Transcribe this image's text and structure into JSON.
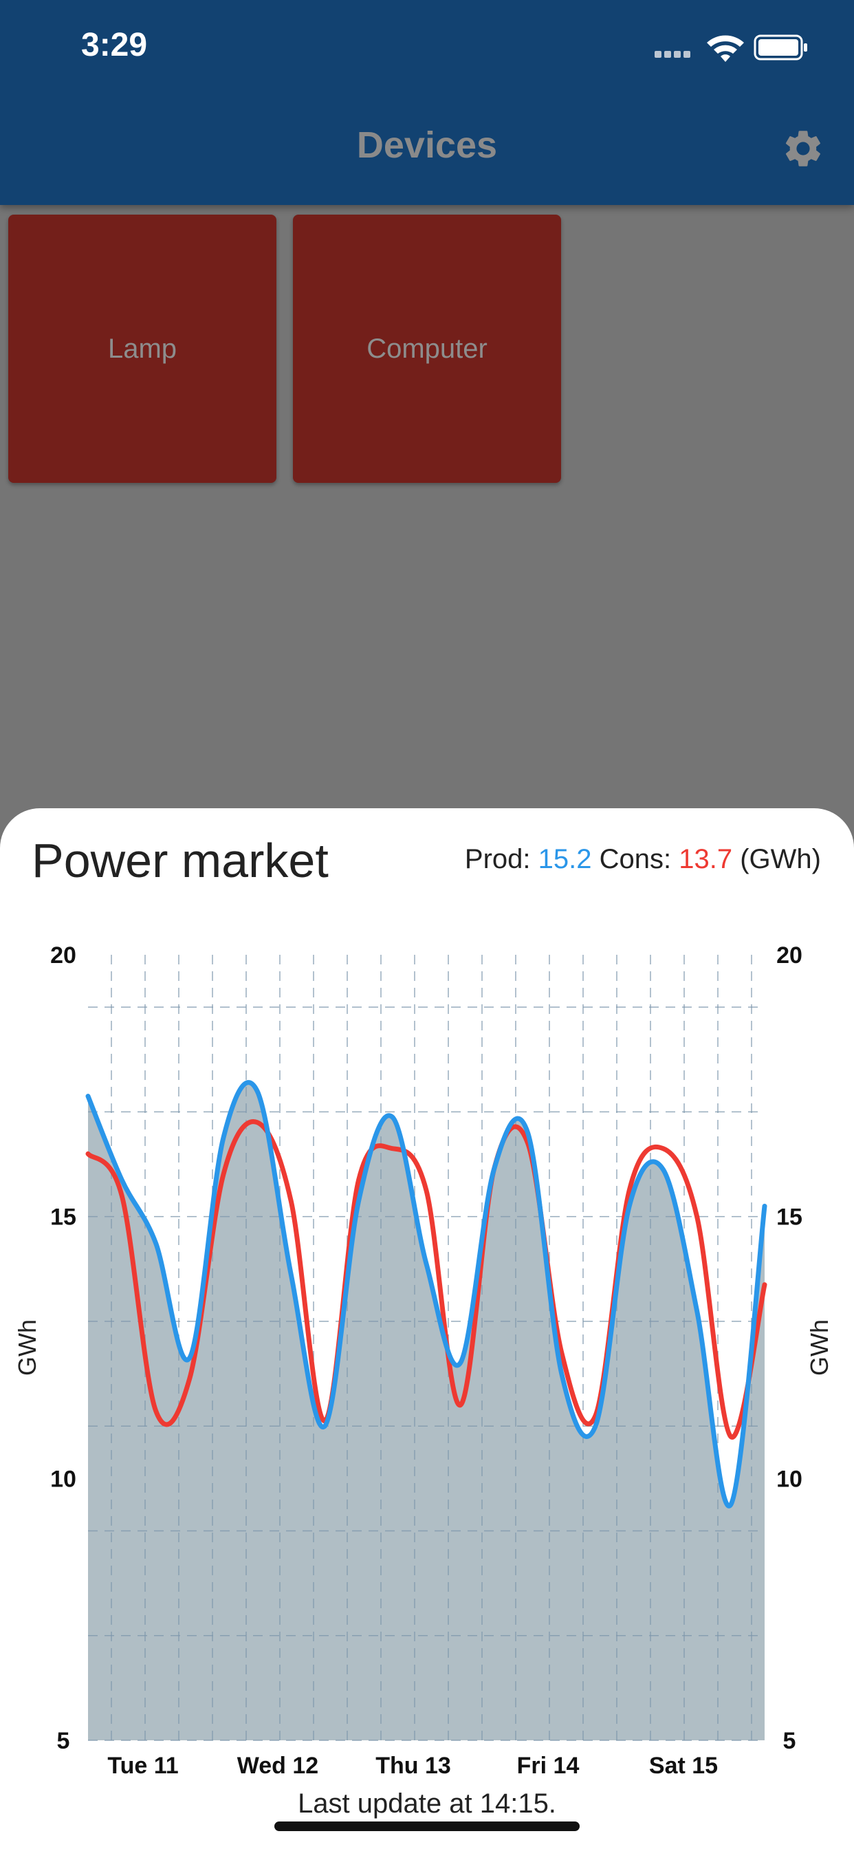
{
  "status": {
    "time": "3:29"
  },
  "appbar": {
    "title": "Devices",
    "settings_icon": "gear-icon"
  },
  "devices": [
    {
      "label": "Lamp"
    },
    {
      "label": "Computer"
    }
  ],
  "sheet": {
    "title": "Power market",
    "summary": {
      "prod_label": "Prod:",
      "prod_value": "15.2",
      "cons_label": "Cons:",
      "cons_value": "13.7",
      "unit": "(GWh)"
    },
    "footer": "Last update at 14:15."
  },
  "colors": {
    "appbar": "#124271",
    "tile": "#731f1a",
    "prod": "#2a96e9",
    "cons": "#ee3a32",
    "area": "#b0bec5"
  },
  "chart_data": {
    "type": "line",
    "ylabel": "GWh",
    "ylim": [
      5,
      20
    ],
    "yticks": [
      "20",
      "15",
      "10",
      "5"
    ],
    "x_day_labels": [
      "Tue 11",
      "Wed 12",
      "Thu 13",
      "Fri 14",
      "Sat 15"
    ],
    "x": [
      0,
      0.25,
      0.5,
      0.75,
      1,
      1.25,
      1.5,
      1.75,
      2,
      2.25,
      2.5,
      2.75,
      3,
      3.25,
      3.5,
      3.75,
      4,
      4.25,
      4.5,
      4.75,
      5
    ],
    "series": [
      {
        "name": "Prod",
        "values": [
          17.3,
          15.7,
          14.5,
          12.3,
          16.5,
          17.4,
          13.9,
          11.0,
          15.3,
          16.9,
          14.1,
          12.2,
          15.9,
          16.6,
          12.0,
          11.0,
          15.2,
          15.9,
          13.2,
          9.5,
          15.2
        ]
      },
      {
        "name": "Cons",
        "values": [
          16.2,
          15.4,
          11.3,
          11.9,
          15.8,
          16.8,
          15.3,
          11.1,
          15.7,
          16.3,
          15.5,
          11.4,
          15.9,
          16.4,
          12.4,
          11.2,
          15.5,
          16.3,
          15.0,
          10.8,
          13.7
        ]
      }
    ]
  }
}
